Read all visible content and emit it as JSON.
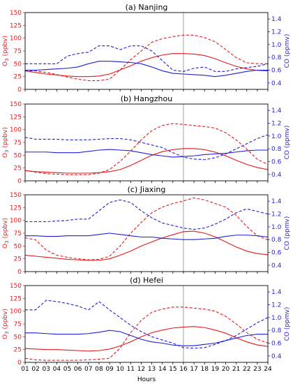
{
  "colors": {
    "o3": "#e31a1c",
    "co": "#1f1fd6",
    "vline": "#888888",
    "axis": "#000000"
  },
  "chart_data": [
    {
      "type": "line",
      "title": "(a) Nanjing",
      "x": [
        1,
        2,
        3,
        4,
        5,
        6,
        7,
        8,
        9,
        10,
        11,
        12,
        13,
        14,
        15,
        16,
        17,
        18,
        19,
        20,
        21,
        22,
        23,
        24
      ],
      "left_ylabel": "O",
      "left_ylabel_sub": "3",
      "left_ylabel_unit": " (ppbv)",
      "right_ylabel": "CO (ppmv)",
      "ylim_left": [
        0,
        150
      ],
      "ylim_right": [
        0.3,
        1.5
      ],
      "left_ticks": [
        0,
        25,
        50,
        75,
        100,
        125,
        150
      ],
      "right_ticks": [
        0.4,
        0.6,
        0.8,
        1.0,
        1.2,
        1.4
      ],
      "series": [
        {
          "axis": "left",
          "style": "solid",
          "values": [
            36,
            33,
            30,
            28,
            26,
            25,
            25,
            26,
            30,
            38,
            46,
            55,
            62,
            67,
            70,
            70,
            69,
            66,
            60,
            52,
            45,
            40,
            37,
            36
          ]
        },
        {
          "axis": "left",
          "style": "dashed",
          "values": [
            36,
            36,
            33,
            29,
            24,
            20,
            17,
            17,
            20,
            38,
            58,
            75,
            92,
            99,
            103,
            106,
            106,
            101,
            93,
            78,
            62,
            52,
            50,
            50
          ]
        },
        {
          "axis": "right",
          "style": "solid",
          "values": [
            0.6,
            0.6,
            0.61,
            0.62,
            0.63,
            0.65,
            0.7,
            0.74,
            0.74,
            0.73,
            0.72,
            0.7,
            0.65,
            0.59,
            0.55,
            0.54,
            0.53,
            0.52,
            0.5,
            0.52,
            0.55,
            0.58,
            0.6,
            0.6
          ]
        },
        {
          "axis": "right",
          "style": "dashed",
          "values": [
            0.7,
            0.7,
            0.7,
            0.7,
            0.82,
            0.86,
            0.88,
            0.98,
            0.98,
            0.92,
            0.98,
            0.98,
            0.9,
            0.75,
            0.6,
            0.58,
            0.63,
            0.65,
            0.58,
            0.58,
            0.62,
            0.64,
            0.66,
            0.7
          ]
        }
      ]
    },
    {
      "type": "line",
      "title": "(b) Hangzhou",
      "x": [
        1,
        2,
        3,
        4,
        5,
        6,
        7,
        8,
        9,
        10,
        11,
        12,
        13,
        14,
        15,
        16,
        17,
        18,
        19,
        20,
        21,
        22,
        23,
        24
      ],
      "left_ylabel": "O",
      "left_ylabel_sub": "3",
      "left_ylabel_unit": " (ppbv)",
      "right_ylabel": "CO (ppmv)",
      "ylim_left": [
        0,
        150
      ],
      "ylim_right": [
        0.3,
        1.5
      ],
      "left_ticks": [
        0,
        25,
        50,
        75,
        100,
        125,
        150
      ],
      "right_ticks": [
        0.4,
        0.6,
        0.8,
        1.0,
        1.2,
        1.4
      ],
      "series": [
        {
          "axis": "left",
          "style": "solid",
          "values": [
            20,
            18,
            17,
            16,
            15,
            15,
            15,
            16,
            18,
            22,
            30,
            40,
            50,
            57,
            61,
            63,
            63,
            61,
            56,
            49,
            40,
            32,
            26,
            22
          ]
        },
        {
          "axis": "left",
          "style": "dashed",
          "values": [
            20,
            17,
            14,
            13,
            12,
            12,
            12,
            15,
            22,
            38,
            58,
            80,
            98,
            108,
            112,
            110,
            108,
            106,
            103,
            94,
            80,
            62,
            42,
            32
          ]
        },
        {
          "axis": "right",
          "style": "solid",
          "values": [
            0.75,
            0.75,
            0.75,
            0.74,
            0.74,
            0.74,
            0.76,
            0.78,
            0.79,
            0.78,
            0.77,
            0.74,
            0.71,
            0.69,
            0.67,
            0.68,
            0.69,
            0.71,
            0.72,
            0.73,
            0.75,
            0.77,
            0.78,
            0.78
          ]
        },
        {
          "axis": "right",
          "style": "dashed",
          "values": [
            0.98,
            0.95,
            0.95,
            0.95,
            0.94,
            0.94,
            0.94,
            0.95,
            0.96,
            0.96,
            0.94,
            0.9,
            0.86,
            0.82,
            0.74,
            0.67,
            0.64,
            0.63,
            0.66,
            0.72,
            0.8,
            0.88,
            0.96,
            1.02
          ]
        }
      ]
    },
    {
      "type": "line",
      "title": "(c) Jiaxing",
      "x": [
        1,
        2,
        3,
        4,
        5,
        6,
        7,
        8,
        9,
        10,
        11,
        12,
        13,
        14,
        15,
        16,
        17,
        18,
        19,
        20,
        21,
        22,
        23,
        24
      ],
      "left_ylabel": "O",
      "left_ylabel_sub": "3",
      "left_ylabel_unit": " (ppbv)",
      "right_ylabel": "CO (ppmv)",
      "ylim_left": [
        0,
        150
      ],
      "ylim_right": [
        0.3,
        1.5
      ],
      "left_ticks": [
        0,
        25,
        50,
        75,
        100,
        125,
        150
      ],
      "right_ticks": [
        0.4,
        0.6,
        0.8,
        1.0,
        1.2,
        1.4
      ],
      "series": [
        {
          "axis": "left",
          "style": "solid",
          "values": [
            32,
            30,
            28,
            26,
            24,
            23,
            22,
            22,
            25,
            32,
            40,
            50,
            58,
            66,
            72,
            78,
            79,
            75,
            68,
            58,
            48,
            40,
            35,
            33
          ]
        },
        {
          "axis": "left",
          "style": "dashed",
          "values": [
            66,
            62,
            42,
            32,
            28,
            25,
            23,
            24,
            30,
            50,
            75,
            96,
            115,
            126,
            133,
            138,
            144,
            140,
            133,
            126,
            110,
            88,
            70,
            62
          ]
        },
        {
          "axis": "right",
          "style": "solid",
          "values": [
            0.86,
            0.86,
            0.85,
            0.85,
            0.86,
            0.86,
            0.86,
            0.88,
            0.9,
            0.88,
            0.86,
            0.84,
            0.84,
            0.82,
            0.81,
            0.8,
            0.8,
            0.81,
            0.82,
            0.85,
            0.87,
            0.87,
            0.86,
            0.84
          ]
        },
        {
          "axis": "right",
          "style": "dashed",
          "values": [
            1.08,
            1.08,
            1.08,
            1.09,
            1.1,
            1.12,
            1.12,
            1.25,
            1.38,
            1.42,
            1.38,
            1.25,
            1.14,
            1.06,
            1.02,
            0.98,
            0.96,
            0.98,
            1.04,
            1.12,
            1.22,
            1.28,
            1.24,
            1.2
          ]
        }
      ]
    },
    {
      "type": "line",
      "title": "(d) Hefei",
      "x": [
        1,
        2,
        3,
        4,
        5,
        6,
        7,
        8,
        9,
        10,
        11,
        12,
        13,
        14,
        15,
        16,
        17,
        18,
        19,
        20,
        21,
        22,
        23,
        24
      ],
      "left_ylabel": "O",
      "left_ylabel_sub": "3",
      "left_ylabel_unit": " (ppbv)",
      "right_ylabel": "CO (ppmv)",
      "ylim_left": [
        0,
        150
      ],
      "ylim_right": [
        0.3,
        1.5
      ],
      "left_ticks": [
        0,
        25,
        50,
        75,
        100,
        125,
        150
      ],
      "right_ticks": [
        0.4,
        0.6,
        0.8,
        1.0,
        1.2,
        1.4
      ],
      "series": [
        {
          "axis": "left",
          "style": "solid",
          "values": [
            27,
            26,
            25,
            25,
            24,
            23,
            22,
            23,
            26,
            32,
            40,
            50,
            58,
            63,
            67,
            69,
            70,
            68,
            63,
            57,
            48,
            40,
            34,
            31
          ]
        },
        {
          "axis": "left",
          "style": "dashed",
          "values": [
            8,
            5,
            4,
            4,
            4,
            4,
            5,
            6,
            8,
            28,
            58,
            82,
            98,
            104,
            108,
            108,
            106,
            104,
            100,
            90,
            75,
            58,
            45,
            38
          ]
        },
        {
          "axis": "right",
          "style": "solid",
          "values": [
            0.76,
            0.76,
            0.75,
            0.74,
            0.74,
            0.74,
            0.75,
            0.77,
            0.8,
            0.78,
            0.72,
            0.66,
            0.62,
            0.6,
            0.57,
            0.56,
            0.56,
            0.58,
            0.6,
            0.64,
            0.68,
            0.72,
            0.74,
            0.74
          ]
        },
        {
          "axis": "right",
          "style": "dashed",
          "values": [
            1.12,
            1.12,
            1.27,
            1.25,
            1.22,
            1.18,
            1.12,
            1.25,
            1.12,
            1.0,
            0.88,
            0.78,
            0.7,
            0.65,
            0.6,
            0.53,
            0.52,
            0.53,
            0.58,
            0.64,
            0.72,
            0.82,
            0.92,
            1.0
          ]
        }
      ]
    }
  ],
  "xaxis": {
    "tick_labels": [
      "01",
      "02",
      "03",
      "04",
      "05",
      "06",
      "07",
      "08",
      "09",
      "10",
      "11",
      "12",
      "13",
      "14",
      "15",
      "16",
      "17",
      "18",
      "19",
      "20",
      "21",
      "22",
      "23",
      "24"
    ],
    "label": "Hours",
    "marker_hour": 16
  }
}
